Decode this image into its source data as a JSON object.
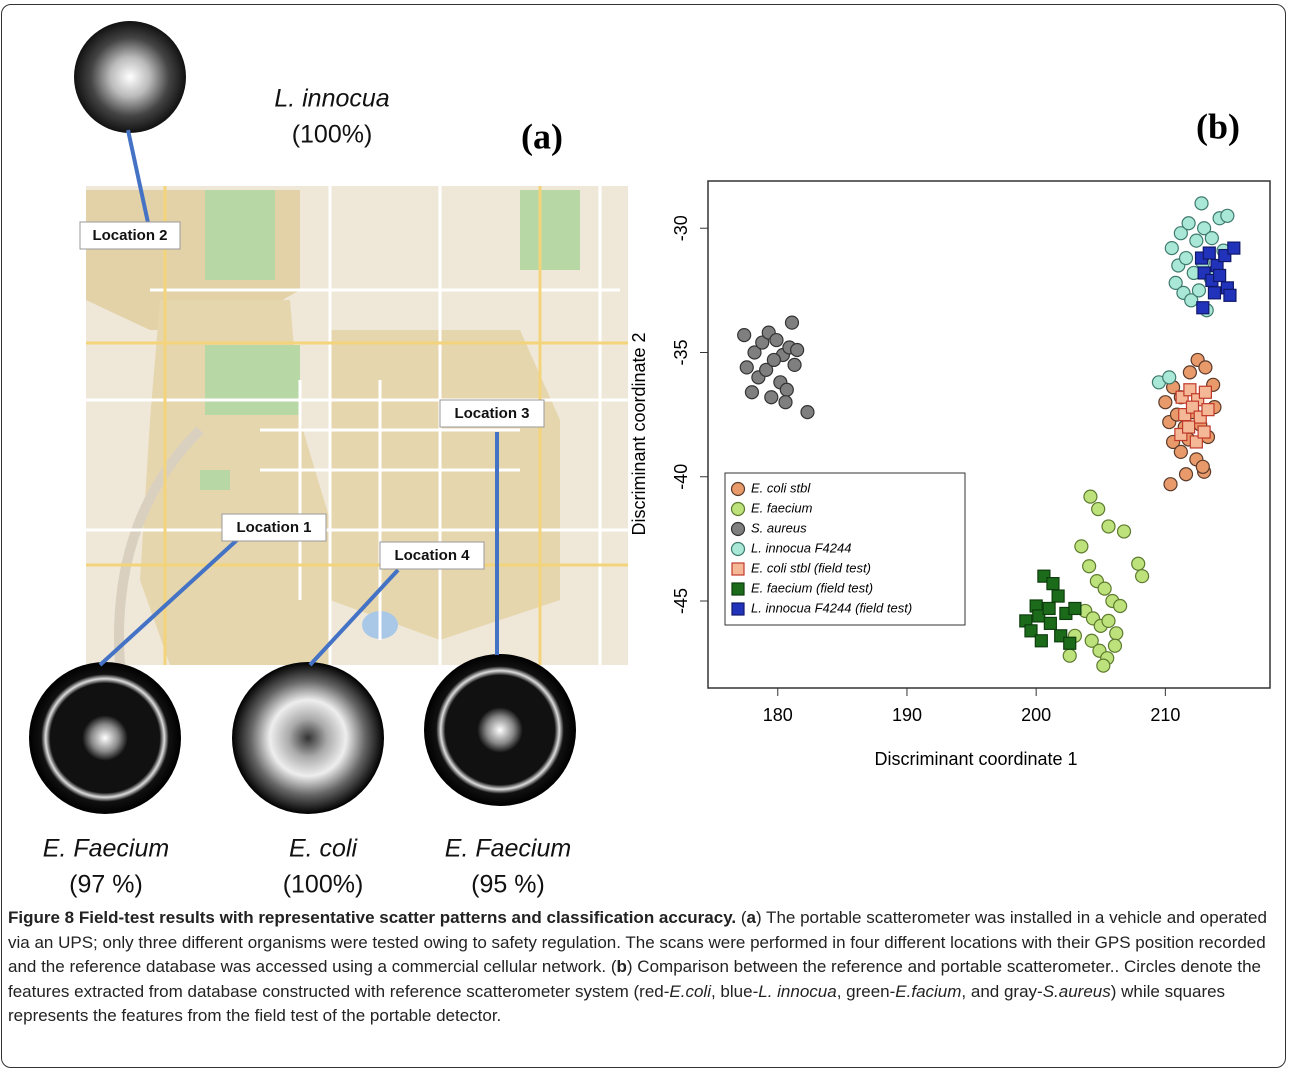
{
  "panel_a": {
    "label": "(a)",
    "top": {
      "name": "L. innocua",
      "accuracy": "(100%)"
    },
    "locations": [
      "Location 2",
      "Location 3",
      "Location 1",
      "Location 4"
    ],
    "bottom": [
      {
        "name": "E. Faecium",
        "accuracy": "(97 %)"
      },
      {
        "name": "E. coli",
        "accuracy": "(100%)"
      },
      {
        "name": "E. Faecium",
        "accuracy": "(95 %)"
      }
    ]
  },
  "chart_data": {
    "type": "scatter",
    "panel_label": "(b)",
    "xlabel": "Discriminant coordinate 1",
    "ylabel": "Discriminant coordinate 2",
    "xlim": [
      174.6,
      218.1
    ],
    "ylim": [
      -48.5,
      -28.1
    ],
    "xticks": [
      180,
      190,
      200,
      210
    ],
    "yticks": [
      -30,
      -35,
      -40,
      -45
    ],
    "legend": "lower left",
    "series": [
      {
        "name": "E. coli stbl",
        "marker": "circle",
        "color": "#e89a6a",
        "edgecolor": "#5a3a2a",
        "x": [
          210.0,
          210.6,
          211.2,
          211.9,
          212.5,
          213.1,
          213.7,
          210.3,
          210.9,
          211.5,
          212.1,
          212.7,
          213.3,
          210.6,
          211.2,
          211.8,
          212.4,
          213.0,
          210.4,
          211.6,
          212.9,
          213.8
        ],
        "values": [
          -37.0,
          -36.4,
          -36.8,
          -35.8,
          -35.3,
          -35.6,
          -36.3,
          -37.8,
          -37.5,
          -38.0,
          -37.4,
          -37.9,
          -38.4,
          -38.6,
          -39.0,
          -38.5,
          -39.3,
          -39.8,
          -40.3,
          -39.9,
          -39.6,
          -37.2
        ]
      },
      {
        "name": "E. faecium",
        "marker": "circle",
        "color": "#bde27c",
        "edgecolor": "#5d7a2e",
        "x": [
          204.2,
          204.8,
          205.6,
          203.5,
          204.1,
          204.7,
          205.3,
          205.9,
          206.5,
          203.8,
          204.4,
          205.0,
          205.6,
          206.2,
          204.3,
          204.9,
          205.5,
          206.1,
          206.8,
          207.9,
          208.2,
          202.6,
          203.0,
          205.2
        ],
        "values": [
          -40.8,
          -41.3,
          -42.0,
          -42.8,
          -43.6,
          -44.2,
          -44.5,
          -45.0,
          -45.2,
          -45.4,
          -45.7,
          -46.0,
          -45.8,
          -46.3,
          -46.6,
          -47.0,
          -47.3,
          -46.8,
          -42.2,
          -43.5,
          -44.0,
          -47.2,
          -46.4,
          -47.6
        ]
      },
      {
        "name": "S. aureus",
        "marker": "circle",
        "color": "#7f7f7f",
        "edgecolor": "#333333",
        "x": [
          178.2,
          178.8,
          179.3,
          179.9,
          180.4,
          180.9,
          181.3,
          178.5,
          179.1,
          179.7,
          180.2,
          180.7,
          177.6,
          181.5,
          178.0,
          179.5,
          180.6,
          182.3,
          177.4,
          181.1
        ],
        "values": [
          -35.0,
          -34.6,
          -34.2,
          -34.5,
          -35.1,
          -34.8,
          -35.5,
          -36.0,
          -35.7,
          -35.3,
          -36.2,
          -36.5,
          -35.6,
          -34.9,
          -36.6,
          -36.8,
          -37.0,
          -37.4,
          -34.3,
          -33.8
        ]
      },
      {
        "name": "L. innocua F4244",
        "marker": "circle",
        "color": "#a9e8d6",
        "edgecolor": "#3f7a6e",
        "x": [
          210.5,
          211.2,
          211.8,
          212.4,
          213.0,
          213.6,
          214.2,
          214.8,
          211.0,
          211.6,
          212.2,
          212.9,
          213.5,
          210.8,
          211.4,
          212.0,
          212.6,
          213.2,
          212.8,
          214.5,
          209.5,
          210.3
        ],
        "values": [
          -30.8,
          -30.2,
          -29.8,
          -30.5,
          -30.0,
          -30.4,
          -29.6,
          -29.5,
          -31.5,
          -31.2,
          -31.8,
          -31.4,
          -32.0,
          -32.2,
          -32.6,
          -32.9,
          -32.5,
          -33.3,
          -29.0,
          -30.9,
          -36.2,
          -36.0
        ]
      },
      {
        "name": "E. coli stbl (field test)",
        "marker": "square",
        "color": "#f5b896",
        "edgecolor": "#c0392b",
        "x": [
          211.3,
          211.9,
          212.5,
          213.1,
          211.5,
          212.1,
          212.7,
          213.3,
          211.2,
          211.8,
          212.4,
          213.0
        ],
        "values": [
          -36.8,
          -36.5,
          -36.9,
          -36.6,
          -37.5,
          -37.2,
          -37.6,
          -37.3,
          -38.3,
          -38.0,
          -38.6,
          -38.2
        ]
      },
      {
        "name": "E. faecium (field test)",
        "marker": "square",
        "color": "#1b6b1b",
        "edgecolor": "#0d3d0d",
        "x": [
          199.2,
          200.0,
          200.6,
          201.3,
          200.2,
          201.0,
          201.7,
          202.3,
          199.6,
          200.4,
          201.1,
          201.9,
          202.6,
          203.0
        ],
        "values": [
          -45.8,
          -45.2,
          -44.0,
          -44.3,
          -45.6,
          -45.3,
          -44.8,
          -45.5,
          -46.2,
          -46.6,
          -45.9,
          -46.4,
          -46.7,
          -45.3
        ]
      },
      {
        "name": "L. innocua F4244 (field test)",
        "marker": "square",
        "color": "#2233bb",
        "edgecolor": "#10186a",
        "x": [
          212.8,
          213.4,
          214.0,
          214.6,
          215.3,
          213.0,
          213.6,
          214.2,
          212.9,
          214.8,
          215.0,
          213.8
        ],
        "values": [
          -31.2,
          -31.0,
          -31.5,
          -31.1,
          -30.8,
          -31.8,
          -32.1,
          -31.9,
          -33.2,
          -32.4,
          -32.7,
          -32.6
        ]
      }
    ]
  },
  "caption": {
    "parts": [
      "Figure 8 Field-test results with representative scatter patterns and classification accuracy.",
      " (",
      "a",
      ") The portable scatterometer was installed in a vehicle and operated via an UPS; only three different organisms were tested owing to safety regulation. The scans were performed in four different locations with their GPS position recorded and the reference database was accessed using a commercial cellular network. (",
      "b",
      ") Comparison between the reference and portable scatterometer.. Circles denote the features extracted from database constructed with reference scatterometer system (red-",
      "E.coli",
      ", blue-",
      "L. innocua",
      ", green-",
      "E.facium",
      ", and gray-",
      "S.aureus",
      ") while squares represents the features from the field test of the portable detector."
    ]
  }
}
